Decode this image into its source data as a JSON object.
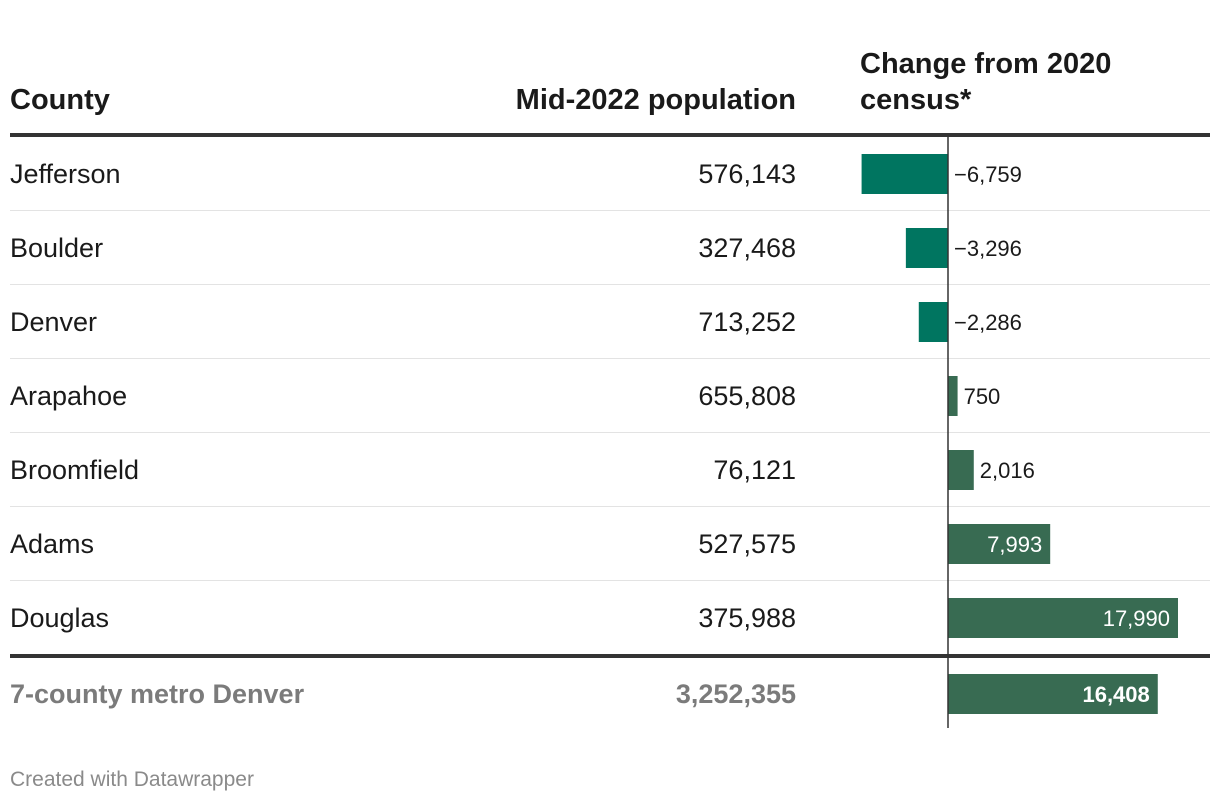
{
  "headers": {
    "county": "County",
    "population": "Mid-2022 population",
    "change": "Change from 2020 census*"
  },
  "rows": [
    {
      "county": "Jefferson",
      "population": "576,143",
      "change": -6759,
      "change_label": "−6,759"
    },
    {
      "county": "Boulder",
      "population": "327,468",
      "change": -3296,
      "change_label": "−3,296"
    },
    {
      "county": "Denver",
      "population": "713,252",
      "change": -2286,
      "change_label": "−2,286"
    },
    {
      "county": "Arapahoe",
      "population": "655,808",
      "change": 750,
      "change_label": "750"
    },
    {
      "county": "Broomfield",
      "population": "76,121",
      "change": 2016,
      "change_label": "2,016"
    },
    {
      "county": "Adams",
      "population": "527,575",
      "change": 7993,
      "change_label": "7,993"
    },
    {
      "county": "Douglas",
      "population": "375,988",
      "change": 17990,
      "change_label": "17,990"
    }
  ],
  "total": {
    "county": "7-county metro Denver",
    "population": "3,252,355",
    "change": 16408,
    "change_label": "16,408"
  },
  "footer": "Created with Datawrapper",
  "colors": {
    "negative": "#007560",
    "positive": "#386b52",
    "text": "#1a1a1a",
    "muted": "#7b7b7b"
  },
  "chart_data": {
    "type": "bar",
    "title": "Change from 2020 census*",
    "categories": [
      "Jefferson",
      "Boulder",
      "Denver",
      "Arapahoe",
      "Broomfield",
      "Adams",
      "Douglas",
      "7-county metro Denver"
    ],
    "values": [
      -6759,
      -3296,
      -2286,
      750,
      2016,
      7993,
      17990,
      16408
    ],
    "xlim": [
      -6759,
      17990
    ]
  }
}
